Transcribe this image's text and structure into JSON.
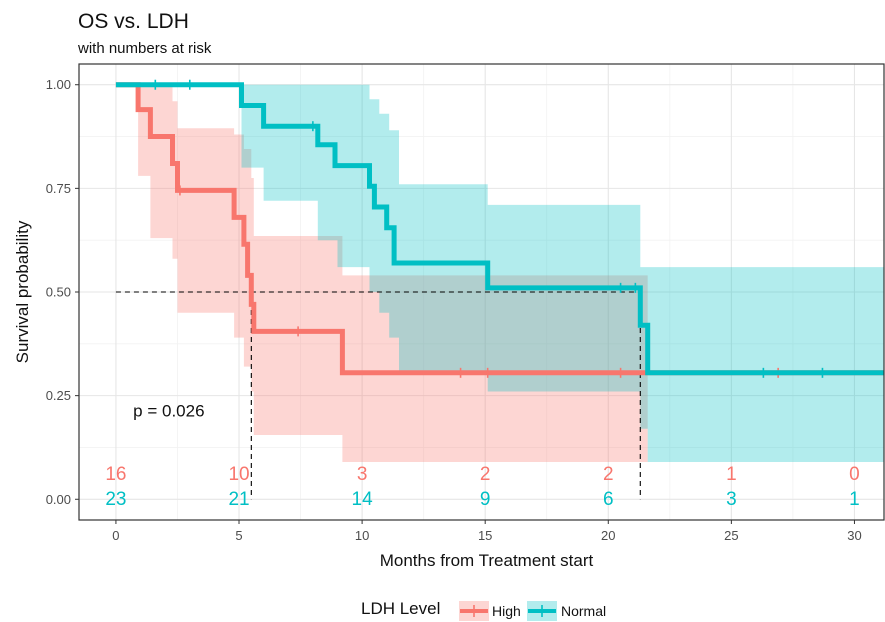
{
  "chart_data": {
    "type": "line",
    "title": "OS vs. LDH",
    "subtitle": "with numbers at risk",
    "xlabel": "Months from Treatment start",
    "ylabel": "Survival probability",
    "xlim": [
      -1.5,
      31.2
    ],
    "ylim": [
      -0.05,
      1.05
    ],
    "x_ticks": [
      0,
      5,
      10,
      15,
      20,
      25,
      30
    ],
    "y_ticks": [
      0.0,
      0.25,
      0.5,
      0.75,
      1.0
    ],
    "y_tick_labels": [
      "0.00",
      "0.25",
      "0.50",
      "0.75",
      "1.00"
    ],
    "grid": true,
    "legend_position": "bottom",
    "legend_title": "LDH Level",
    "median_line_y": 0.5,
    "median_times": [
      5.5,
      21.3
    ],
    "p_value_text": "p = 0.026",
    "series": [
      {
        "name": "High",
        "color": "#F8766D",
        "steps": [
          [
            0,
            1.0
          ],
          [
            0.9,
            0.94
          ],
          [
            1.4,
            0.875
          ],
          [
            2.3,
            0.81
          ],
          [
            2.5,
            0.745
          ],
          [
            4.8,
            0.68
          ],
          [
            5.2,
            0.615
          ],
          [
            5.35,
            0.54
          ],
          [
            5.5,
            0.47
          ],
          [
            5.6,
            0.405
          ],
          [
            9.2,
            0.305
          ],
          [
            31.2,
            0.305
          ]
        ],
        "ci_upper": [
          [
            0,
            1.0
          ],
          [
            0.9,
            1.0
          ],
          [
            1.4,
            1.0
          ],
          [
            2.3,
            0.96
          ],
          [
            2.5,
            0.895
          ],
          [
            4.8,
            0.88
          ],
          [
            5.2,
            0.845
          ],
          [
            5.5,
            0.775
          ],
          [
            5.6,
            0.635
          ],
          [
            9.2,
            0.54
          ],
          [
            15.1,
            0.54
          ],
          [
            21.6,
            0.54
          ]
        ],
        "ci_lower": [
          [
            0,
            1.0
          ],
          [
            0.9,
            0.78
          ],
          [
            1.4,
            0.63
          ],
          [
            2.3,
            0.58
          ],
          [
            2.5,
            0.45
          ],
          [
            4.8,
            0.39
          ],
          [
            5.2,
            0.32
          ],
          [
            5.5,
            0.26
          ],
          [
            5.6,
            0.155
          ],
          [
            9.2,
            0.09
          ],
          [
            21.6,
            0.09
          ]
        ],
        "censor": [
          2.6,
          7.4,
          14.0,
          15.1,
          20.5,
          26.9
        ]
      },
      {
        "name": "Normal",
        "color": "#00BFC4",
        "steps": [
          [
            0,
            1.0
          ],
          [
            5.1,
            0.95
          ],
          [
            6.0,
            0.9
          ],
          [
            8.2,
            0.855
          ],
          [
            8.9,
            0.805
          ],
          [
            10.3,
            0.755
          ],
          [
            10.5,
            0.705
          ],
          [
            11.0,
            0.655
          ],
          [
            11.3,
            0.57
          ],
          [
            15.1,
            0.51
          ],
          [
            21.3,
            0.42
          ],
          [
            21.6,
            0.305
          ],
          [
            31.2,
            0.305
          ]
        ],
        "ci_upper": [
          [
            0,
            1.0
          ],
          [
            5.1,
            1.0
          ],
          [
            6.0,
            1.0
          ],
          [
            8.2,
            1.0
          ],
          [
            9.0,
            1.0
          ],
          [
            10.3,
            0.965
          ],
          [
            10.7,
            0.93
          ],
          [
            11.1,
            0.89
          ],
          [
            11.5,
            0.76
          ],
          [
            15.1,
            0.71
          ],
          [
            21.3,
            0.56
          ],
          [
            31.2,
            0.56
          ]
        ],
        "ci_lower": [
          [
            0,
            1.0
          ],
          [
            5.1,
            0.8
          ],
          [
            6.0,
            0.72
          ],
          [
            8.2,
            0.625
          ],
          [
            9.0,
            0.56
          ],
          [
            10.3,
            0.5
          ],
          [
            10.7,
            0.45
          ],
          [
            11.1,
            0.39
          ],
          [
            11.5,
            0.31
          ],
          [
            15.1,
            0.26
          ],
          [
            21.3,
            0.17
          ],
          [
            21.6,
            0.09
          ],
          [
            31.2,
            0.09
          ]
        ],
        "censor": [
          1.6,
          3.0,
          8.0,
          20.5,
          21.1,
          26.3,
          28.7
        ]
      }
    ],
    "numbers_at_risk": {
      "times": [
        0,
        5,
        10,
        15,
        20,
        25,
        30
      ],
      "High": [
        "16",
        "10",
        "3",
        "2",
        "2",
        "1",
        "0"
      ],
      "Normal": [
        "23",
        "21",
        "14",
        "9",
        "6",
        "3",
        "1"
      ]
    }
  }
}
